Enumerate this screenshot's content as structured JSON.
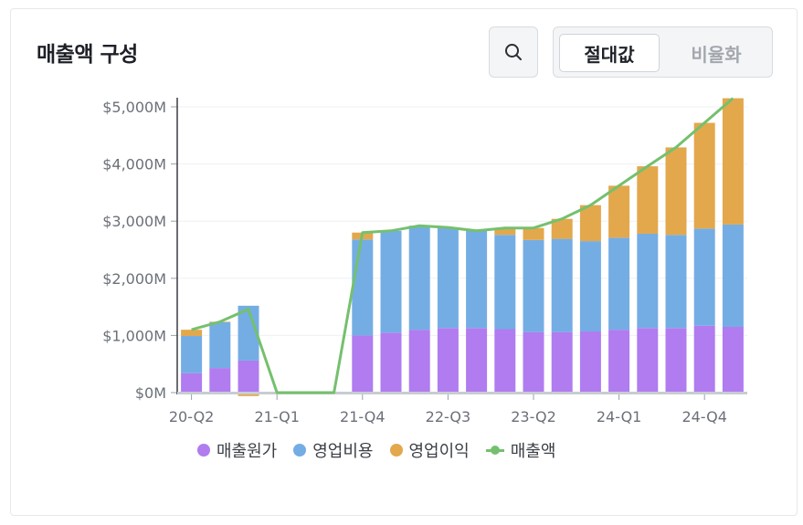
{
  "card": {
    "title": "매출액 구성",
    "view_toggle": {
      "options": [
        "절대값",
        "비율화"
      ],
      "selected": "절대값"
    },
    "icons": {
      "search": "search-icon"
    }
  },
  "legend": [
    {
      "label": "매출원가",
      "color": "#b07cf0",
      "shape": "dot"
    },
    {
      "label": "영업비용",
      "color": "#74ade4",
      "shape": "dot"
    },
    {
      "label": "영업이익",
      "color": "#e3a84c",
      "shape": "dot"
    },
    {
      "label": "매출액",
      "color": "#75c06e",
      "shape": "line"
    }
  ],
  "chart_data": {
    "type": "bar",
    "stacked": true,
    "categories": [
      "20-Q2",
      "20-Q3",
      "20-Q4",
      "21-Q1",
      "21-Q2",
      "21-Q3",
      "21-Q4",
      "22-Q1",
      "22-Q2",
      "22-Q3",
      "22-Q4",
      "23-Q1",
      "23-Q2",
      "23-Q3",
      "23-Q4",
      "24-Q1",
      "24-Q2",
      "24-Q3",
      "24-Q4",
      "25-Q1"
    ],
    "x_tick_labels": [
      "20-Q2",
      "21-Q1",
      "21-Q4",
      "22-Q3",
      "23-Q2",
      "24-Q1",
      "24-Q4"
    ],
    "y_tick_labels": [
      "$0M",
      "$1,000M",
      "$2,000M",
      "$3,000M",
      "$4,000M",
      "$5,000M"
    ],
    "ylim": [
      -100,
      5150
    ],
    "series": [
      {
        "name": "매출원가",
        "type": "bar",
        "color": "#b07cf0",
        "values": [
          340,
          430,
          560,
          0,
          0,
          0,
          1000,
          1050,
          1100,
          1130,
          1130,
          1110,
          1060,
          1060,
          1070,
          1100,
          1130,
          1130,
          1170,
          1150
        ]
      },
      {
        "name": "영업비용",
        "type": "bar",
        "color": "#74ade4",
        "values": [
          650,
          800,
          960,
          0,
          0,
          0,
          1680,
          1780,
          1820,
          1760,
          1700,
          1650,
          1610,
          1630,
          1580,
          1610,
          1650,
          1630,
          1700,
          1790
        ]
      },
      {
        "name": "영업이익",
        "type": "bar",
        "color": "#e3a84c",
        "values": [
          110,
          10,
          -60,
          0,
          0,
          0,
          120,
          0,
          0,
          0,
          0,
          120,
          210,
          350,
          630,
          910,
          1180,
          1530,
          1850,
          2210
        ]
      },
      {
        "name": "매출액",
        "type": "line",
        "color": "#75c06e",
        "values": [
          1100,
          1240,
          1460,
          0,
          0,
          0,
          2800,
          2830,
          2920,
          2890,
          2830,
          2880,
          2880,
          3040,
          3280,
          3620,
          3960,
          4290,
          4720,
          5150
        ]
      }
    ]
  }
}
